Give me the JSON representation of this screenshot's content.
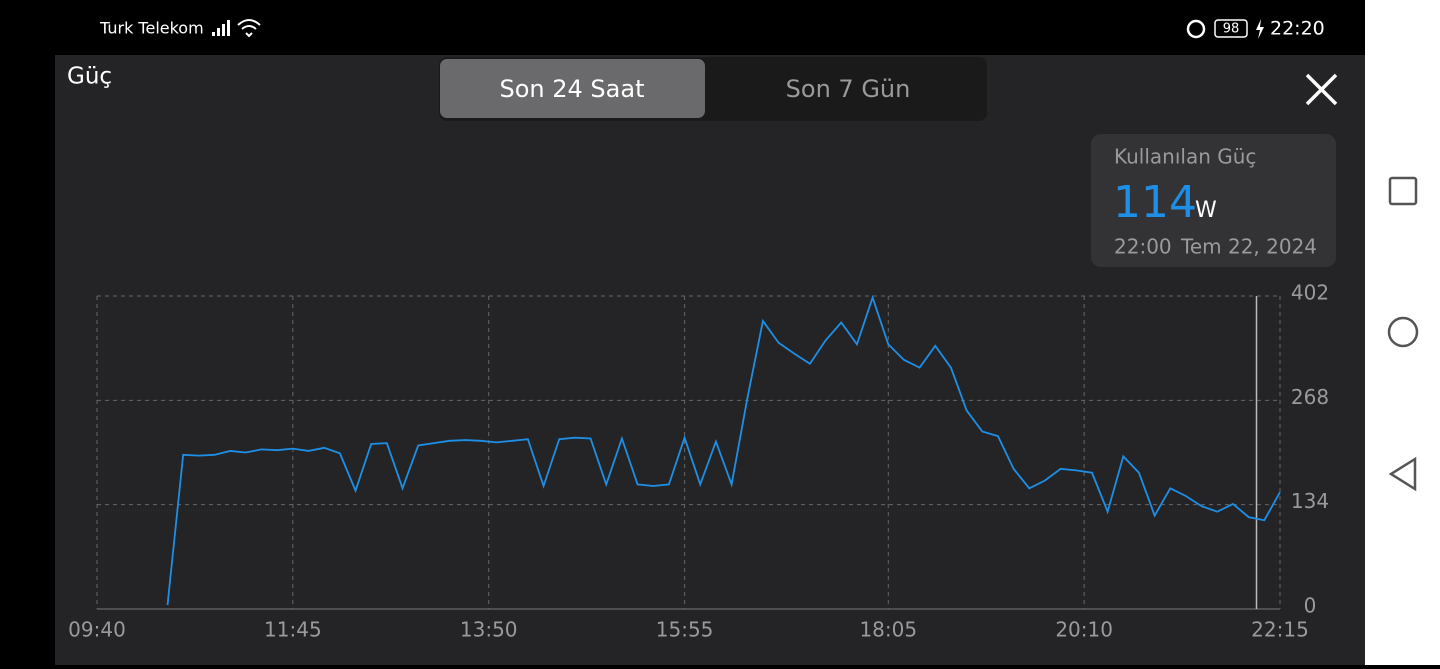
{
  "status_bar": {
    "carrier": "Turk Telekom",
    "battery": "98",
    "time": "22:20"
  },
  "header": {
    "title": "Güç",
    "tabs": [
      "Son 24 Saat",
      "Son 7 Gün"
    ]
  },
  "tooltip": {
    "label": "Kullanılan Güç",
    "value": "114",
    "unit": "W",
    "time": "22:00",
    "date": "Tem 22, 2024"
  },
  "chart_data": {
    "type": "line",
    "xlim": [
      "09:40",
      "22:15"
    ],
    "xticks": [
      "09:40",
      "11:45",
      "13:50",
      "15:55",
      "18:05",
      "20:10",
      "22:15"
    ],
    "ylim": [
      0,
      402
    ],
    "yticks": [
      0,
      134,
      268,
      402
    ],
    "grid": true,
    "cursor": "22:00",
    "x": [
      "10:25",
      "10:35",
      "10:45",
      "10:55",
      "11:05",
      "11:15",
      "11:25",
      "11:35",
      "11:45",
      "11:55",
      "12:05",
      "12:15",
      "12:25",
      "12:35",
      "12:45",
      "12:55",
      "13:05",
      "13:15",
      "13:25",
      "13:35",
      "13:45",
      "13:55",
      "14:05",
      "14:15",
      "14:25",
      "14:35",
      "14:45",
      "14:55",
      "15:05",
      "15:15",
      "15:25",
      "15:35",
      "15:45",
      "15:55",
      "16:05",
      "16:15",
      "16:25",
      "16:35",
      "16:45",
      "16:55",
      "17:05",
      "17:15",
      "17:25",
      "17:35",
      "17:45",
      "17:55",
      "18:05",
      "18:15",
      "18:25",
      "18:35",
      "18:45",
      "18:55",
      "19:05",
      "19:15",
      "19:25",
      "19:35",
      "19:45",
      "19:55",
      "20:05",
      "20:15",
      "20:25",
      "20:35",
      "20:45",
      "20:55",
      "21:05",
      "21:15",
      "21:25",
      "21:35",
      "21:45",
      "21:55",
      "22:05",
      "22:15"
    ],
    "series": [
      {
        "color": "#1e8fe6",
        "values": [
          5,
          198,
          197,
          198,
          203,
          201,
          205,
          204,
          206,
          203,
          207,
          200,
          152,
          212,
          213,
          155,
          210,
          213,
          216,
          217,
          216,
          214,
          216,
          218,
          158,
          218,
          220,
          219,
          160,
          219,
          160,
          158,
          160,
          220,
          160,
          215,
          160,
          270,
          370,
          342,
          328,
          315,
          345,
          368,
          340,
          400,
          340,
          320,
          310,
          338,
          310,
          255,
          228,
          222,
          180,
          155,
          165,
          180,
          178,
          175,
          125,
          196,
          175,
          120,
          155,
          145,
          132,
          125,
          135,
          118,
          114,
          150
        ]
      }
    ]
  }
}
